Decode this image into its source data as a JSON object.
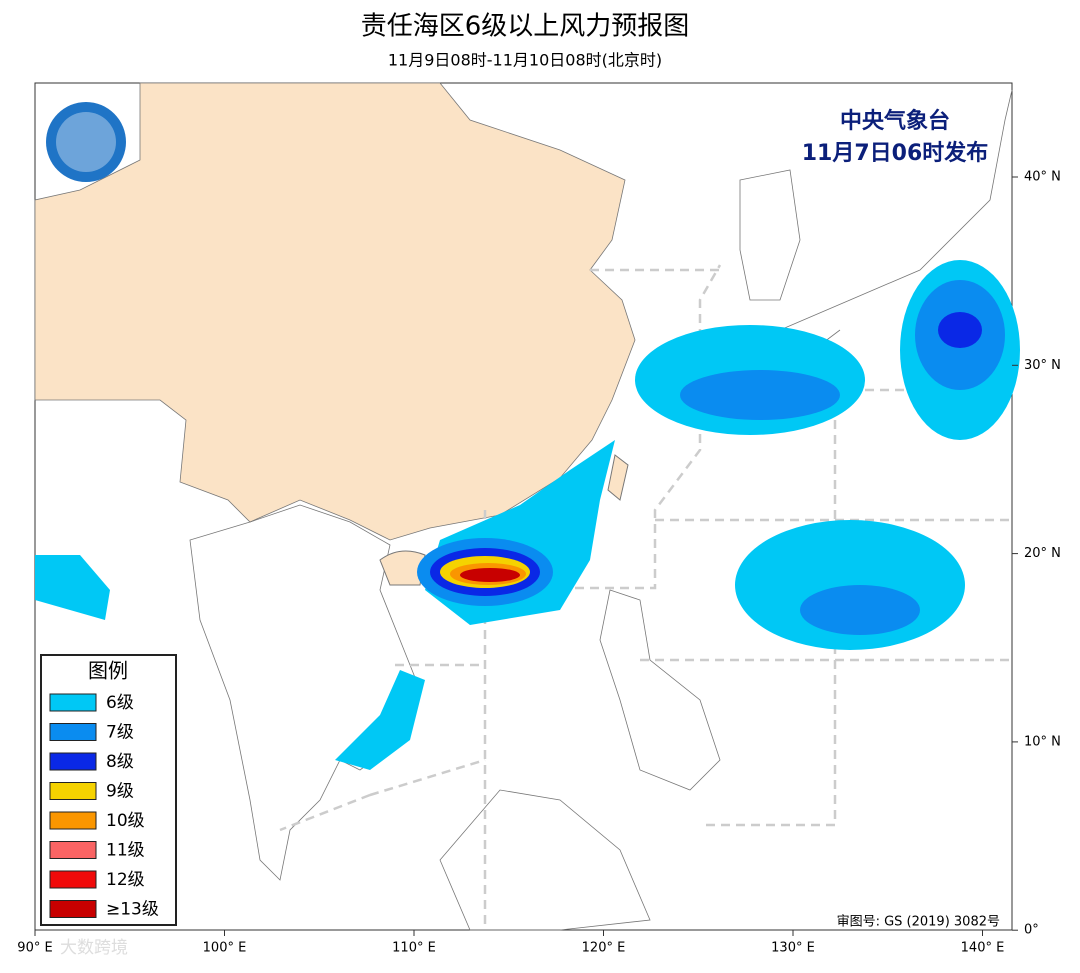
{
  "header": {
    "title": "责任海区6级以上风力预报图",
    "subtitle": "11月9日08时-11月10日08时(北京时)"
  },
  "issuer": {
    "agency": "中央气象台",
    "time": "11月7日06时发布"
  },
  "legend": {
    "title": "图例",
    "items": [
      {
        "label": "6级",
        "color": "#00c8f5"
      },
      {
        "label": "7级",
        "color": "#0a8cf0"
      },
      {
        "label": "8级",
        "color": "#0a28e6"
      },
      {
        "label": "9级",
        "color": "#f5d200"
      },
      {
        "label": "10级",
        "color": "#fa9600"
      },
      {
        "label": "11级",
        "color": "#fa6464"
      },
      {
        "label": "12级",
        "color": "#f00a0a"
      },
      {
        "label": "≥13级",
        "color": "#c80000"
      }
    ]
  },
  "axes": {
    "latitude": [
      "40° N",
      "30° N",
      "20° N",
      "10° N",
      "0°"
    ],
    "longitude": [
      "90° E",
      "100° E",
      "110° E",
      "120° E",
      "130° E",
      "140° E"
    ]
  },
  "approval": "审图号: GS (2019) 3082号",
  "watermark": "大数跨境"
}
